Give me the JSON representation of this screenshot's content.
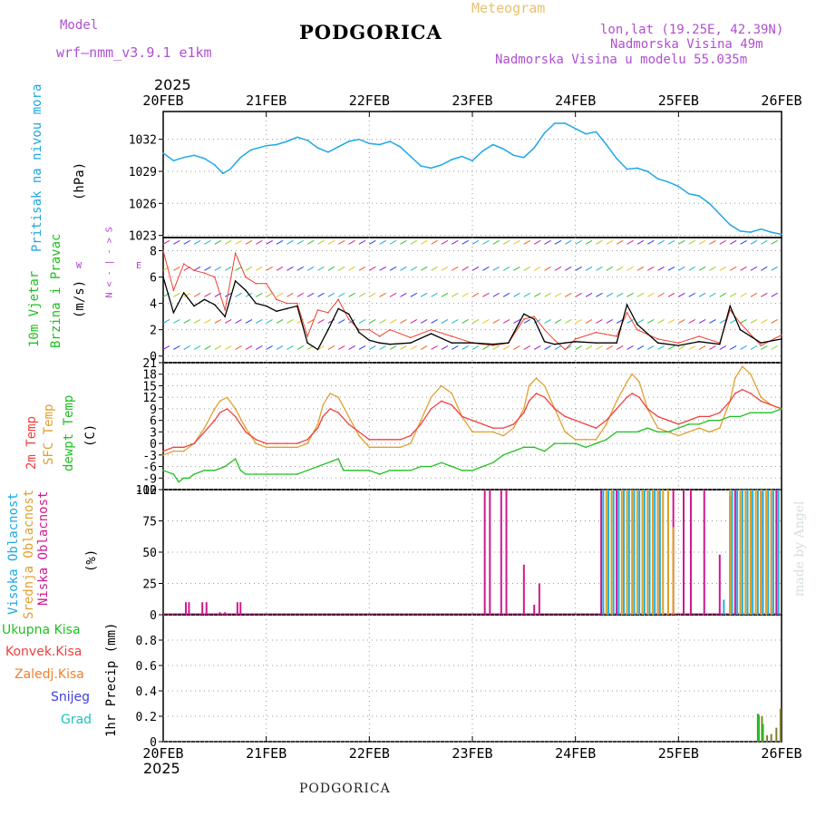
{
  "header": {
    "model_label": "Model",
    "model_name": "wrf—nmm_v3.9.1  e1km",
    "title": "PODGORICA",
    "meteogram": "Meteogram",
    "lonlat": "lon,lat (19.25E, 42.39N)",
    "altitude": "Nadmorska Visina 49m",
    "altitude_model": "Nadmorska Visina u modelu 55.035m",
    "year_top": "2025",
    "year_bottom": "2025",
    "footer": "PODGORICA",
    "watermark": "made by Angel"
  },
  "colors": {
    "pressure": "#1ea7e8",
    "wind_speed": "#000000",
    "gust": "#f04030",
    "t2m": "#f04040",
    "sfc": "#e0a030",
    "dewpt": "#20c020",
    "high_cloud": "#20b0e0",
    "mid_cloud": "#e0a020",
    "low_cloud": "#d01890",
    "total_precip": "#20c020",
    "conv_precip": "#f04040",
    "frozen_precip": "#f08030",
    "snow": "#4040e0",
    "hail": "#20c0c0",
    "panel_label_blue": "#20a8e0",
    "panel_label_green": "#20c020",
    "panel_label_purple": "#b040d0"
  },
  "panel_labels": {
    "pressure": [
      "Pritisak na nivou mora",
      "(hPa)"
    ],
    "wind": [
      "10m Vjetar",
      "Brzina i Pravac",
      "(m/s)"
    ],
    "compass": [
      "N",
      "< - | - >",
      "S",
      "W",
      "E"
    ],
    "temp": [
      "2m Temp",
      "SFC Temp",
      "dewpt Temp",
      "(C)"
    ],
    "cloud": [
      "Visoka Oblacnost",
      "Srednja Oblacnost",
      "Niska Oblacnost",
      "(%)"
    ],
    "precip_legend": [
      "Ukupna Kisa",
      "Konvek.Kisa",
      "Zaledj.Kisa",
      "Snijeg",
      "Grad"
    ],
    "precip_unit": "1hr Precip (mm)"
  },
  "chart_data": [
    {
      "type": "line",
      "panel": "pressure",
      "x_ticks": [
        "20FEB",
        "21FEB",
        "22FEB",
        "23FEB",
        "24FEB",
        "25FEB",
        "26FEB"
      ],
      "xlim_days": [
        0,
        6
      ],
      "ylim": [
        1022.8,
        1034.6
      ],
      "y_ticks": [
        1023,
        1026,
        1029,
        1032
      ],
      "ylabel": "(hPa)",
      "series": [
        {
          "x": [
            0,
            0.1,
            0.2,
            0.3,
            0.4,
            0.5,
            0.58,
            0.65,
            0.75,
            0.85,
            1.0,
            1.1,
            1.2,
            1.3,
            1.4,
            1.5,
            1.6,
            1.7,
            1.8,
            1.9,
            2.0,
            2.1,
            2.2,
            2.3,
            2.4,
            2.5,
            2.6,
            2.7,
            2.8,
            2.9,
            3.0,
            3.1,
            3.2,
            3.3,
            3.4,
            3.5,
            3.6,
            3.7,
            3.8,
            3.9,
            4.0,
            4.1,
            4.2,
            4.3,
            4.4,
            4.5,
            4.6,
            4.7,
            4.8,
            4.9,
            5.0,
            5.1,
            5.2,
            5.3,
            5.4,
            5.5,
            5.6,
            5.7,
            5.8,
            5.9,
            6.0
          ],
          "values": [
            1030.7,
            1030.0,
            1030.3,
            1030.5,
            1030.2,
            1029.6,
            1028.8,
            1029.2,
            1030.3,
            1031.0,
            1031.4,
            1031.5,
            1031.8,
            1032.2,
            1031.9,
            1031.2,
            1030.8,
            1031.3,
            1031.8,
            1032.0,
            1031.6,
            1031.5,
            1031.8,
            1031.3,
            1030.4,
            1029.5,
            1029.3,
            1029.6,
            1030.1,
            1030.4,
            1030.0,
            1030.9,
            1031.5,
            1031.1,
            1030.5,
            1030.3,
            1031.2,
            1032.6,
            1033.5,
            1033.5,
            1033.0,
            1032.5,
            1032.7,
            1031.5,
            1030.2,
            1029.2,
            1029.3,
            1029.0,
            1028.3,
            1028.0,
            1027.6,
            1026.9,
            1026.7,
            1026.0,
            1025.0,
            1024.0,
            1023.4,
            1023.3,
            1023.6,
            1023.3,
            1023.1
          ]
        }
      ]
    },
    {
      "type": "line",
      "panel": "wind",
      "xlim_days": [
        0,
        6
      ],
      "ylim": [
        -0.5,
        9.0
      ],
      "y_ticks": [
        0,
        2,
        4,
        6,
        8
      ],
      "ylabel": "(m/s)",
      "series": [
        {
          "name": "wind_speed",
          "x": [
            0,
            0.1,
            0.2,
            0.3,
            0.4,
            0.5,
            0.6,
            0.7,
            0.8,
            0.9,
            1.0,
            1.1,
            1.2,
            1.3,
            1.4,
            1.5,
            1.6,
            1.7,
            1.8,
            1.9,
            2.0,
            2.1,
            2.2,
            2.4,
            2.6,
            2.8,
            3.0,
            3.2,
            3.35,
            3.5,
            3.6,
            3.7,
            3.8,
            3.9,
            4.0,
            4.2,
            4.4,
            4.5,
            4.6,
            4.8,
            5.0,
            5.2,
            5.4,
            5.5,
            5.6,
            5.8,
            6.0
          ],
          "values": [
            6.0,
            3.3,
            4.8,
            3.8,
            4.3,
            3.9,
            3.0,
            5.7,
            5.0,
            4.0,
            3.8,
            3.4,
            3.6,
            3.8,
            1.0,
            0.5,
            2.0,
            3.6,
            3.2,
            1.8,
            1.2,
            1.0,
            0.9,
            1.0,
            1.7,
            1.0,
            1.0,
            0.9,
            1.0,
            3.2,
            2.8,
            1.1,
            0.9,
            1.0,
            1.1,
            1.0,
            1.0,
            3.9,
            2.4,
            1.0,
            0.8,
            1.1,
            0.9,
            3.8,
            2.0,
            1.0,
            1.3
          ]
        },
        {
          "name": "gust",
          "x": [
            0,
            0.1,
            0.2,
            0.3,
            0.4,
            0.5,
            0.6,
            0.7,
            0.8,
            0.9,
            1.0,
            1.1,
            1.2,
            1.3,
            1.4,
            1.5,
            1.6,
            1.7,
            1.8,
            1.9,
            2.0,
            2.1,
            2.2,
            2.4,
            2.6,
            2.8,
            3.0,
            3.2,
            3.35,
            3.5,
            3.6,
            3.7,
            3.8,
            3.9,
            4.0,
            4.2,
            4.4,
            4.5,
            4.6,
            4.8,
            5.0,
            5.2,
            5.4,
            5.5,
            5.6,
            5.8,
            6.0
          ],
          "values": [
            8.0,
            5.0,
            7.0,
            6.5,
            6.3,
            6.0,
            3.5,
            7.8,
            6.0,
            5.5,
            5.5,
            4.3,
            4.0,
            4.0,
            1.5,
            3.5,
            3.3,
            4.3,
            2.8,
            2.0,
            2.0,
            1.5,
            2.0,
            1.4,
            2.0,
            1.5,
            1.0,
            0.8,
            1.0,
            2.8,
            3.0,
            2.0,
            1.2,
            0.5,
            1.3,
            1.8,
            1.5,
            3.3,
            2.0,
            1.3,
            1.0,
            1.5,
            1.0,
            3.5,
            2.5,
            0.8,
            1.6
          ]
        }
      ]
    },
    {
      "type": "line",
      "panel": "temperature",
      "xlim_days": [
        0,
        6
      ],
      "ylim": [
        -12,
        21
      ],
      "y_ticks": [
        -12,
        -9,
        -6,
        -3,
        0,
        3,
        6,
        9,
        12,
        15,
        18,
        21
      ],
      "ylabel": "(C)",
      "series": [
        {
          "name": "2m Temp",
          "x": [
            0,
            0.1,
            0.2,
            0.3,
            0.4,
            0.5,
            0.55,
            0.62,
            0.7,
            0.8,
            0.9,
            1.0,
            1.1,
            1.2,
            1.3,
            1.4,
            1.5,
            1.55,
            1.62,
            1.7,
            1.8,
            1.9,
            2.0,
            2.1,
            2.2,
            2.3,
            2.4,
            2.5,
            2.6,
            2.7,
            2.8,
            2.9,
            3.0,
            3.1,
            3.2,
            3.3,
            3.4,
            3.5,
            3.55,
            3.62,
            3.7,
            3.8,
            3.9,
            4.0,
            4.1,
            4.2,
            4.3,
            4.4,
            4.5,
            4.55,
            4.62,
            4.7,
            4.8,
            4.9,
            5.0,
            5.1,
            5.2,
            5.3,
            5.4,
            5.5,
            5.55,
            5.62,
            5.7,
            5.8,
            5.9,
            6.0
          ],
          "values": [
            -2,
            -1,
            -1,
            0,
            3,
            6,
            8,
            9,
            7,
            3,
            1,
            0,
            0,
            0,
            0,
            1,
            4,
            7,
            9,
            8,
            5,
            3,
            1,
            1,
            1,
            1,
            2,
            5,
            9,
            11,
            10,
            7,
            6,
            5,
            4,
            4,
            5,
            8,
            11,
            13,
            12,
            9,
            7,
            6,
            5,
            4,
            6,
            9,
            12,
            13,
            12,
            9,
            7,
            6,
            5,
            6,
            7,
            7,
            8,
            11,
            13,
            14,
            13,
            11,
            10,
            9
          ]
        },
        {
          "name": "SFC Temp",
          "x": [
            0,
            0.1,
            0.2,
            0.3,
            0.4,
            0.5,
            0.55,
            0.62,
            0.7,
            0.8,
            0.9,
            1.0,
            1.1,
            1.2,
            1.3,
            1.4,
            1.5,
            1.55,
            1.62,
            1.7,
            1.8,
            1.9,
            2.0,
            2.1,
            2.2,
            2.3,
            2.4,
            2.5,
            2.6,
            2.7,
            2.8,
            2.9,
            3.0,
            3.1,
            3.2,
            3.3,
            3.4,
            3.5,
            3.55,
            3.62,
            3.7,
            3.8,
            3.9,
            4.0,
            4.1,
            4.2,
            4.3,
            4.4,
            4.5,
            4.55,
            4.62,
            4.7,
            4.8,
            4.9,
            5.0,
            5.1,
            5.2,
            5.3,
            5.4,
            5.5,
            5.55,
            5.62,
            5.7,
            5.8,
            5.9,
            6.0
          ],
          "values": [
            -3,
            -2,
            -2,
            0,
            4,
            9,
            11,
            12,
            9,
            4,
            0,
            -1,
            -1,
            -1,
            -1,
            0,
            5,
            10,
            13,
            12,
            7,
            2,
            -1,
            -1,
            -1,
            -1,
            0,
            6,
            12,
            15,
            13,
            7,
            3,
            3,
            3,
            2,
            4,
            9,
            15,
            17,
            15,
            9,
            3,
            1,
            1,
            1,
            5,
            11,
            16,
            18,
            16,
            9,
            4,
            3,
            2,
            3,
            4,
            3,
            4,
            11,
            17,
            20,
            18,
            12,
            10,
            9
          ]
        },
        {
          "name": "dewpt Temp",
          "x": [
            0,
            0.1,
            0.15,
            0.2,
            0.25,
            0.3,
            0.4,
            0.5,
            0.6,
            0.7,
            0.75,
            0.8,
            0.9,
            1.0,
            1.1,
            1.2,
            1.3,
            1.4,
            1.5,
            1.6,
            1.7,
            1.75,
            1.8,
            1.9,
            2.0,
            2.1,
            2.2,
            2.3,
            2.4,
            2.5,
            2.6,
            2.7,
            2.8,
            2.9,
            3.0,
            3.1,
            3.2,
            3.3,
            3.4,
            3.5,
            3.6,
            3.7,
            3.8,
            3.9,
            4.0,
            4.1,
            4.2,
            4.3,
            4.4,
            4.5,
            4.6,
            4.7,
            4.8,
            4.9,
            5.0,
            5.1,
            5.2,
            5.3,
            5.4,
            5.5,
            5.6,
            5.7,
            5.8,
            5.9,
            6.0
          ],
          "values": [
            -7,
            -8,
            -10,
            -9,
            -9,
            -8,
            -7,
            -7,
            -6,
            -4,
            -7,
            -8,
            -8,
            -8,
            -8,
            -8,
            -8,
            -7,
            -6,
            -5,
            -4,
            -7,
            -7,
            -7,
            -7,
            -8,
            -7,
            -7,
            -7,
            -6,
            -6,
            -5,
            -6,
            -7,
            -7,
            -6,
            -5,
            -3,
            -2,
            -1,
            -1,
            -2,
            0,
            0,
            0,
            -1,
            0,
            1,
            3,
            3,
            3,
            4,
            3,
            3,
            4,
            5,
            5,
            6,
            6,
            7,
            7,
            8,
            8,
            8,
            9
          ]
        }
      ]
    },
    {
      "type": "bar",
      "panel": "cloud",
      "xlim_days": [
        0,
        6
      ],
      "ylim": [
        0,
        100
      ],
      "y_ticks": [
        0,
        25,
        50,
        75,
        100
      ],
      "ylabel": "(%)",
      "series": [
        {
          "name": "Niska Oblacnost",
          "x": [
            0.22,
            0.25,
            0.38,
            0.42,
            0.55,
            0.6,
            0.72,
            0.75,
            3.12,
            3.17,
            3.28,
            3.33,
            3.5,
            3.6,
            3.65,
            4.25,
            4.4,
            4.8,
            4.95,
            5.05,
            5.12,
            5.25,
            5.4,
            5.5,
            5.55,
            5.7,
            5.8,
            5.9,
            5.95
          ],
          "values": [
            10,
            10,
            10,
            10,
            2,
            2,
            10,
            10,
            100,
            100,
            100,
            100,
            40,
            8,
            25,
            100,
            100,
            100,
            100,
            100,
            100,
            100,
            48,
            95,
            100,
            100,
            100,
            100,
            100
          ]
        },
        {
          "name": "Srednja Oblacnost",
          "x": [
            4.3,
            4.35,
            4.45,
            4.5,
            4.55,
            4.6,
            4.65,
            4.7,
            4.75,
            4.8,
            4.85,
            4.9,
            4.95,
            5.5,
            5.6,
            5.65,
            5.7,
            5.75,
            5.8,
            5.85,
            5.9
          ],
          "values": [
            100,
            100,
            100,
            100,
            100,
            100,
            100,
            100,
            100,
            100,
            100,
            100,
            70,
            100,
            100,
            100,
            100,
            100,
            100,
            100,
            100
          ]
        },
        {
          "name": "Visoka Oblacnost",
          "x": [
            4.27,
            4.32,
            4.37,
            4.42,
            4.47,
            4.52,
            4.57,
            4.62,
            4.67,
            4.72,
            4.77,
            4.82,
            5.44,
            5.52,
            5.57,
            5.62,
            5.67,
            5.72,
            5.77,
            5.82,
            5.87,
            5.92,
            5.97
          ],
          "values": [
            100,
            100,
            100,
            100,
            100,
            100,
            100,
            100,
            100,
            100,
            100,
            100,
            12,
            100,
            100,
            100,
            100,
            100,
            100,
            100,
            100,
            100,
            100
          ]
        }
      ]
    },
    {
      "type": "bar",
      "panel": "precip",
      "xlim_days": [
        0,
        6
      ],
      "ylim": [
        0,
        1.0
      ],
      "y_ticks": [
        0,
        0.2,
        0.4,
        0.6,
        0.8
      ],
      "ylabel": "1hr Precip (mm)",
      "series": [
        {
          "name": "Ukupna Kisa",
          "x": [
            5.77,
            5.81,
            5.86,
            5.9,
            5.95,
            5.99
          ],
          "values": [
            0.22,
            0.2,
            0.05,
            0.06,
            0.11,
            0.26
          ]
        },
        {
          "name": "Konvek.Kisa",
          "x": [
            5.78,
            5.82
          ],
          "values": [
            0.21,
            0.14
          ]
        }
      ]
    }
  ]
}
